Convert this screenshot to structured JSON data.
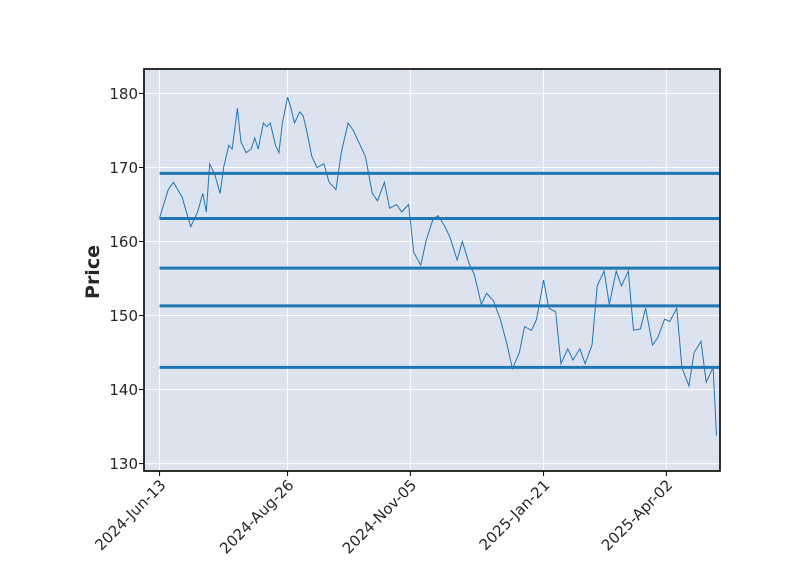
{
  "chart_data": {
    "type": "line",
    "title": "",
    "xlabel": "",
    "ylabel": "Price",
    "ylim": [
      129,
      183.3
    ],
    "xlim": [
      "2024-06-04",
      "2025-05-03"
    ],
    "grid": true,
    "background": "#dde3ee",
    "line_color": "#1f77b4",
    "y_ticks": [
      130,
      140,
      150,
      160,
      170,
      180
    ],
    "x_ticks": [
      {
        "date": "2024-06-13",
        "label": "2024-Jun-13"
      },
      {
        "date": "2024-08-26",
        "label": "2024-Aug-26"
      },
      {
        "date": "2024-11-05",
        "label": "2024-Nov-05"
      },
      {
        "date": "2025-01-21",
        "label": "2025-Jan-21"
      },
      {
        "date": "2025-04-02",
        "label": "2025-Apr-02"
      }
    ],
    "horizontal_lines": [
      169.2,
      163.1,
      156.4,
      151.3,
      143.0
    ],
    "series": [
      {
        "x": [
          "2024-06-13",
          "2024-06-18",
          "2024-06-21",
          "2024-06-26",
          "2024-07-01",
          "2024-07-05",
          "2024-07-08",
          "2024-07-10",
          "2024-07-12",
          "2024-07-15",
          "2024-07-18",
          "2024-07-20",
          "2024-07-23",
          "2024-07-25",
          "2024-07-28",
          "2024-07-30",
          "2024-08-02",
          "2024-08-05",
          "2024-08-07",
          "2024-08-09",
          "2024-08-12",
          "2024-08-14",
          "2024-08-16",
          "2024-08-19",
          "2024-08-21",
          "2024-08-23",
          "2024-08-26",
          "2024-08-28",
          "2024-08-30",
          "2024-09-02",
          "2024-09-04",
          "2024-09-06",
          "2024-09-09",
          "2024-09-12",
          "2024-09-16",
          "2024-09-19",
          "2024-09-23",
          "2024-09-26",
          "2024-09-30",
          "2024-10-03",
          "2024-10-07",
          "2024-10-10",
          "2024-10-14",
          "2024-10-17",
          "2024-10-21",
          "2024-10-24",
          "2024-10-28",
          "2024-10-31",
          "2024-11-04",
          "2024-11-07",
          "2024-11-11",
          "2024-11-14",
          "2024-11-18",
          "2024-11-21",
          "2024-11-25",
          "2024-11-28",
          "2024-12-02",
          "2024-12-05",
          "2024-12-09",
          "2024-12-12",
          "2024-12-16",
          "2024-12-19",
          "2024-12-23",
          "2024-12-27",
          "2024-12-31",
          "2025-01-03",
          "2025-01-07",
          "2025-01-10",
          "2025-01-14",
          "2025-01-17",
          "2025-01-21",
          "2025-01-24",
          "2025-01-28",
          "2025-01-31",
          "2025-02-04",
          "2025-02-07",
          "2025-02-11",
          "2025-02-14",
          "2025-02-18",
          "2025-02-21",
          "2025-02-25",
          "2025-02-28",
          "2025-03-04",
          "2025-03-07",
          "2025-03-11",
          "2025-03-14",
          "2025-03-18",
          "2025-03-21",
          "2025-03-25",
          "2025-03-28",
          "2025-04-01",
          "2025-04-04",
          "2025-04-08",
          "2025-04-11",
          "2025-04-15",
          "2025-04-18",
          "2025-04-22",
          "2025-04-25",
          "2025-04-29",
          "2025-05-01"
        ],
        "values": [
          163.2,
          167.0,
          168.0,
          166.0,
          162.0,
          164.0,
          166.5,
          164.0,
          170.5,
          169.0,
          166.5,
          170.0,
          173.0,
          172.5,
          178.0,
          173.5,
          172.0,
          172.5,
          174.0,
          172.5,
          176.0,
          175.5,
          176.0,
          173.0,
          172.0,
          176.0,
          179.5,
          178.0,
          176.0,
          177.5,
          177.0,
          175.0,
          171.5,
          170.0,
          170.5,
          168.0,
          167.0,
          172.0,
          176.0,
          175.0,
          173.0,
          171.5,
          166.5,
          165.5,
          168.0,
          164.5,
          165.0,
          164.0,
          165.0,
          158.5,
          156.8,
          160.0,
          163.0,
          163.5,
          162.0,
          160.5,
          157.5,
          160.0,
          157.0,
          155.5,
          151.5,
          153.0,
          152.0,
          149.5,
          146.0,
          142.8,
          145.0,
          148.5,
          148.0,
          149.5,
          154.8,
          151.0,
          150.5,
          143.5,
          145.5,
          144.0,
          145.5,
          143.5,
          146.0,
          154.0,
          156.0,
          151.5,
          156.0,
          154.0,
          156.0,
          148.0,
          148.2,
          151.0,
          146.0,
          147.0,
          149.5,
          149.2,
          151.0,
          143.0,
          140.5,
          145.0,
          146.5,
          141.0,
          143.0,
          133.8
        ]
      }
    ]
  }
}
